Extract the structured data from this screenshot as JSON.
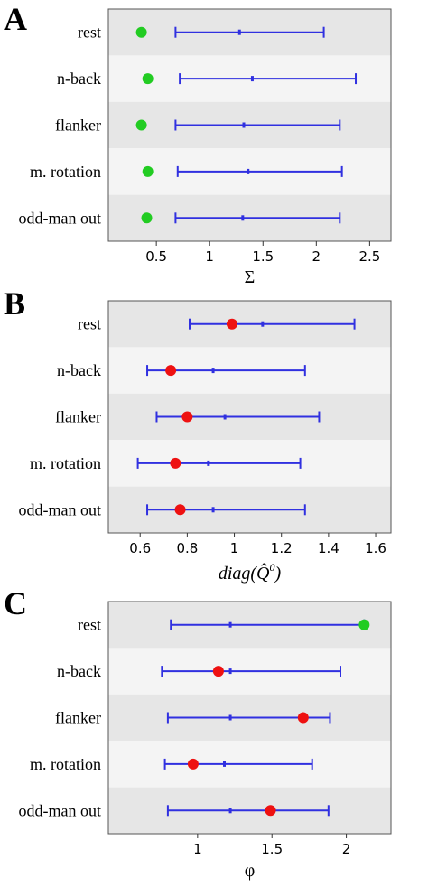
{
  "chart_data": [
    {
      "type": "errorbar",
      "panel": "A",
      "xlabel": "Σ",
      "xlim": [
        0.05,
        2.7
      ],
      "xticks": [
        0.5,
        1,
        1.5,
        2,
        2.5
      ],
      "xtick_labels": [
        "0.5",
        "1",
        "1.5",
        "2",
        "2.5"
      ],
      "grid": false,
      "categories": [
        "rest",
        "n-back",
        "flanker",
        "m. rotation",
        "odd-man out"
      ],
      "intervals": [
        {
          "low": 0.68,
          "mid": 1.28,
          "high": 2.07
        },
        {
          "low": 0.72,
          "mid": 1.4,
          "high": 2.37
        },
        {
          "low": 0.68,
          "mid": 1.32,
          "high": 2.22
        },
        {
          "low": 0.7,
          "mid": 1.36,
          "high": 2.24
        },
        {
          "low": 0.68,
          "mid": 1.31,
          "high": 2.22
        }
      ],
      "points": [
        {
          "value": 0.36,
          "color": "#22cc22"
        },
        {
          "value": 0.42,
          "color": "#22cc22"
        },
        {
          "value": 0.36,
          "color": "#22cc22"
        },
        {
          "value": 0.42,
          "color": "#22cc22"
        },
        {
          "value": 0.41,
          "color": "#22cc22"
        }
      ]
    },
    {
      "type": "errorbar",
      "panel": "B",
      "xlabel_prefix": "diag(",
      "xlabel_symbol": "Q̂",
      "xlabel_superscript": "0",
      "xlabel_suffix": ")",
      "xlim": [
        0.465,
        1.665
      ],
      "xticks": [
        0.6,
        0.8,
        1.0,
        1.2,
        1.4,
        1.6
      ],
      "xtick_labels": [
        "0.6",
        "0.8",
        "1",
        "1.2",
        "1.4",
        "1.6"
      ],
      "grid": false,
      "categories": [
        "rest",
        "n-back",
        "flanker",
        "m. rotation",
        "odd-man out"
      ],
      "intervals": [
        {
          "low": 0.81,
          "mid": 1.12,
          "high": 1.51
        },
        {
          "low": 0.63,
          "mid": 0.91,
          "high": 1.3
        },
        {
          "low": 0.67,
          "mid": 0.96,
          "high": 1.36
        },
        {
          "low": 0.59,
          "mid": 0.89,
          "high": 1.28
        },
        {
          "low": 0.63,
          "mid": 0.91,
          "high": 1.3
        }
      ],
      "points": [
        {
          "value": 0.99,
          "color": "#ee1111"
        },
        {
          "value": 0.73,
          "color": "#ee1111"
        },
        {
          "value": 0.8,
          "color": "#ee1111"
        },
        {
          "value": 0.75,
          "color": "#ee1111"
        },
        {
          "value": 0.77,
          "color": "#ee1111"
        }
      ]
    },
    {
      "type": "errorbar",
      "panel": "C",
      "xlabel": "φ",
      "xlim": [
        0.4,
        2.3
      ],
      "xticks": [
        1.0,
        1.5,
        2.0
      ],
      "xtick_labels": [
        "1",
        "1.5",
        "2"
      ],
      "grid": false,
      "categories": [
        "rest",
        "n-back",
        "flanker",
        "m. rotation",
        "odd-man out"
      ],
      "intervals": [
        {
          "low": 0.82,
          "mid": 1.22,
          "high": 2.12
        },
        {
          "low": 0.76,
          "mid": 1.22,
          "high": 1.96
        },
        {
          "low": 0.8,
          "mid": 1.22,
          "high": 1.89
        },
        {
          "low": 0.78,
          "mid": 1.18,
          "high": 1.77
        },
        {
          "low": 0.8,
          "mid": 1.22,
          "high": 1.88
        }
      ],
      "points": [
        {
          "value": 2.12,
          "color": "#22cc22"
        },
        {
          "value": 1.14,
          "color": "#ee1111"
        },
        {
          "value": 1.71,
          "color": "#ee1111"
        },
        {
          "value": 0.97,
          "color": "#ee1111"
        },
        {
          "value": 1.49,
          "color": "#ee1111"
        }
      ]
    }
  ],
  "colors": {
    "interval": "#3030e0",
    "band_dark": "#e6e6e6",
    "band_light": "#f4f4f4",
    "frame": "#555555"
  }
}
